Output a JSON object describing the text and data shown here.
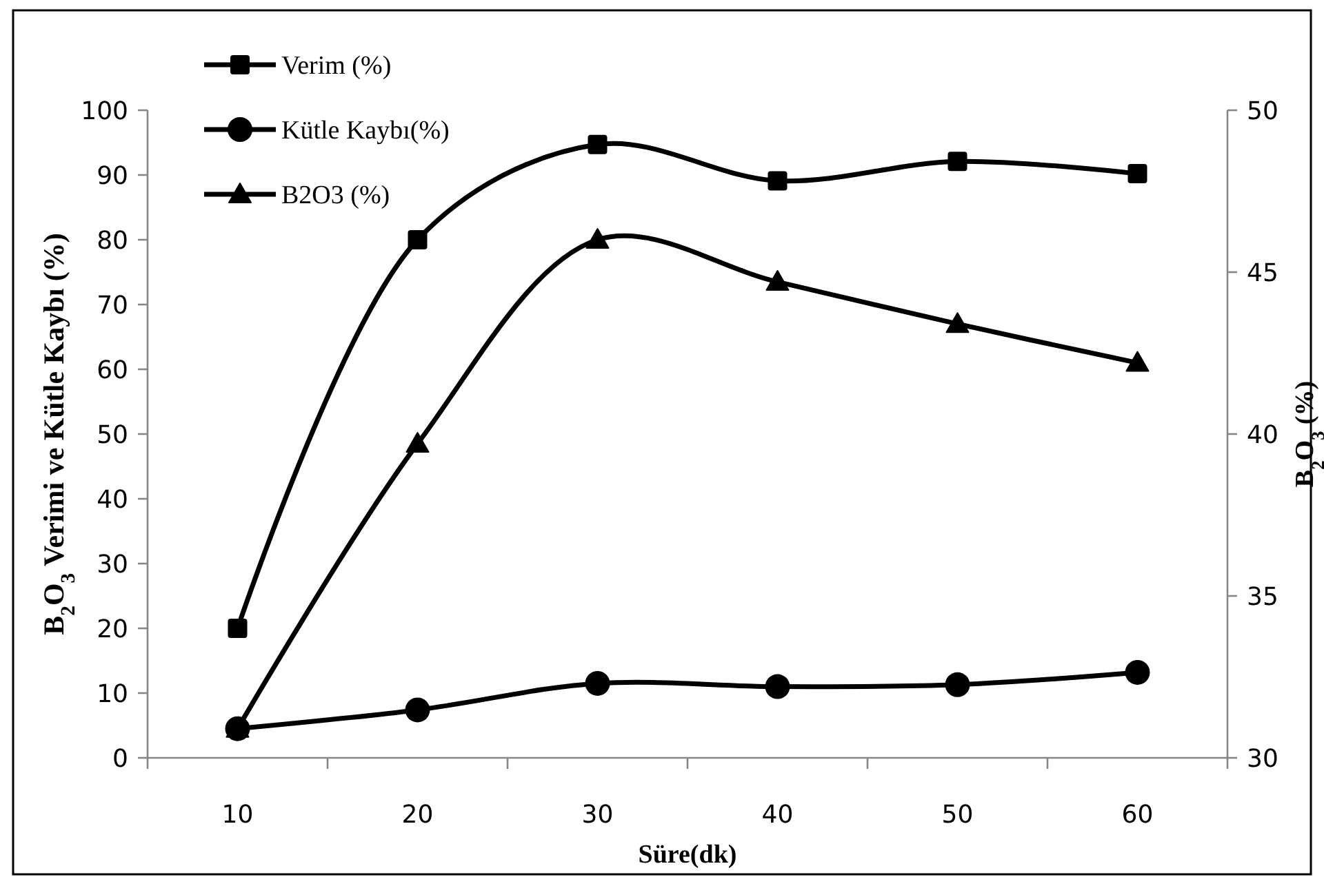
{
  "chart_data": {
    "type": "line",
    "xlabel": "Süre(dk)",
    "ylabel": "B$_{2}$O$_{3}$  Verimi ve Kütle Kaybı (%)",
    "y2label": "B$_{2}$O$_{3}$ (%)",
    "categories": [
      "10",
      "20",
      "30",
      "40",
      "50",
      "60"
    ],
    "ylim": [
      0,
      100
    ],
    "yticks": [
      0,
      10,
      20,
      30,
      40,
      50,
      60,
      70,
      80,
      90,
      100
    ],
    "y2lim": [
      30,
      50
    ],
    "y2ticks": [
      30,
      35,
      40,
      45,
      50
    ],
    "legend": "top left",
    "grid": false,
    "line_style": "solid",
    "series": [
      {
        "name": "Verim (%)",
        "color": "#000000",
        "marker": "square",
        "values": [
          20.0,
          80.0,
          94.7,
          89.1,
          92.1,
          90.2
        ]
      },
      {
        "name": "Kütle Kaybı(%)",
        "color": "#000000",
        "marker": "circle",
        "values": [
          4.5,
          7.4,
          11.5,
          11.0,
          11.3,
          13.2
        ]
      },
      {
        "name": "B2O3 (%)",
        "color": "#000000",
        "marker": "triangle",
        "axis": "y2",
        "values": [
          30.9,
          39.7,
          46.0,
          44.7,
          43.4,
          42.2
        ]
      }
    ]
  }
}
